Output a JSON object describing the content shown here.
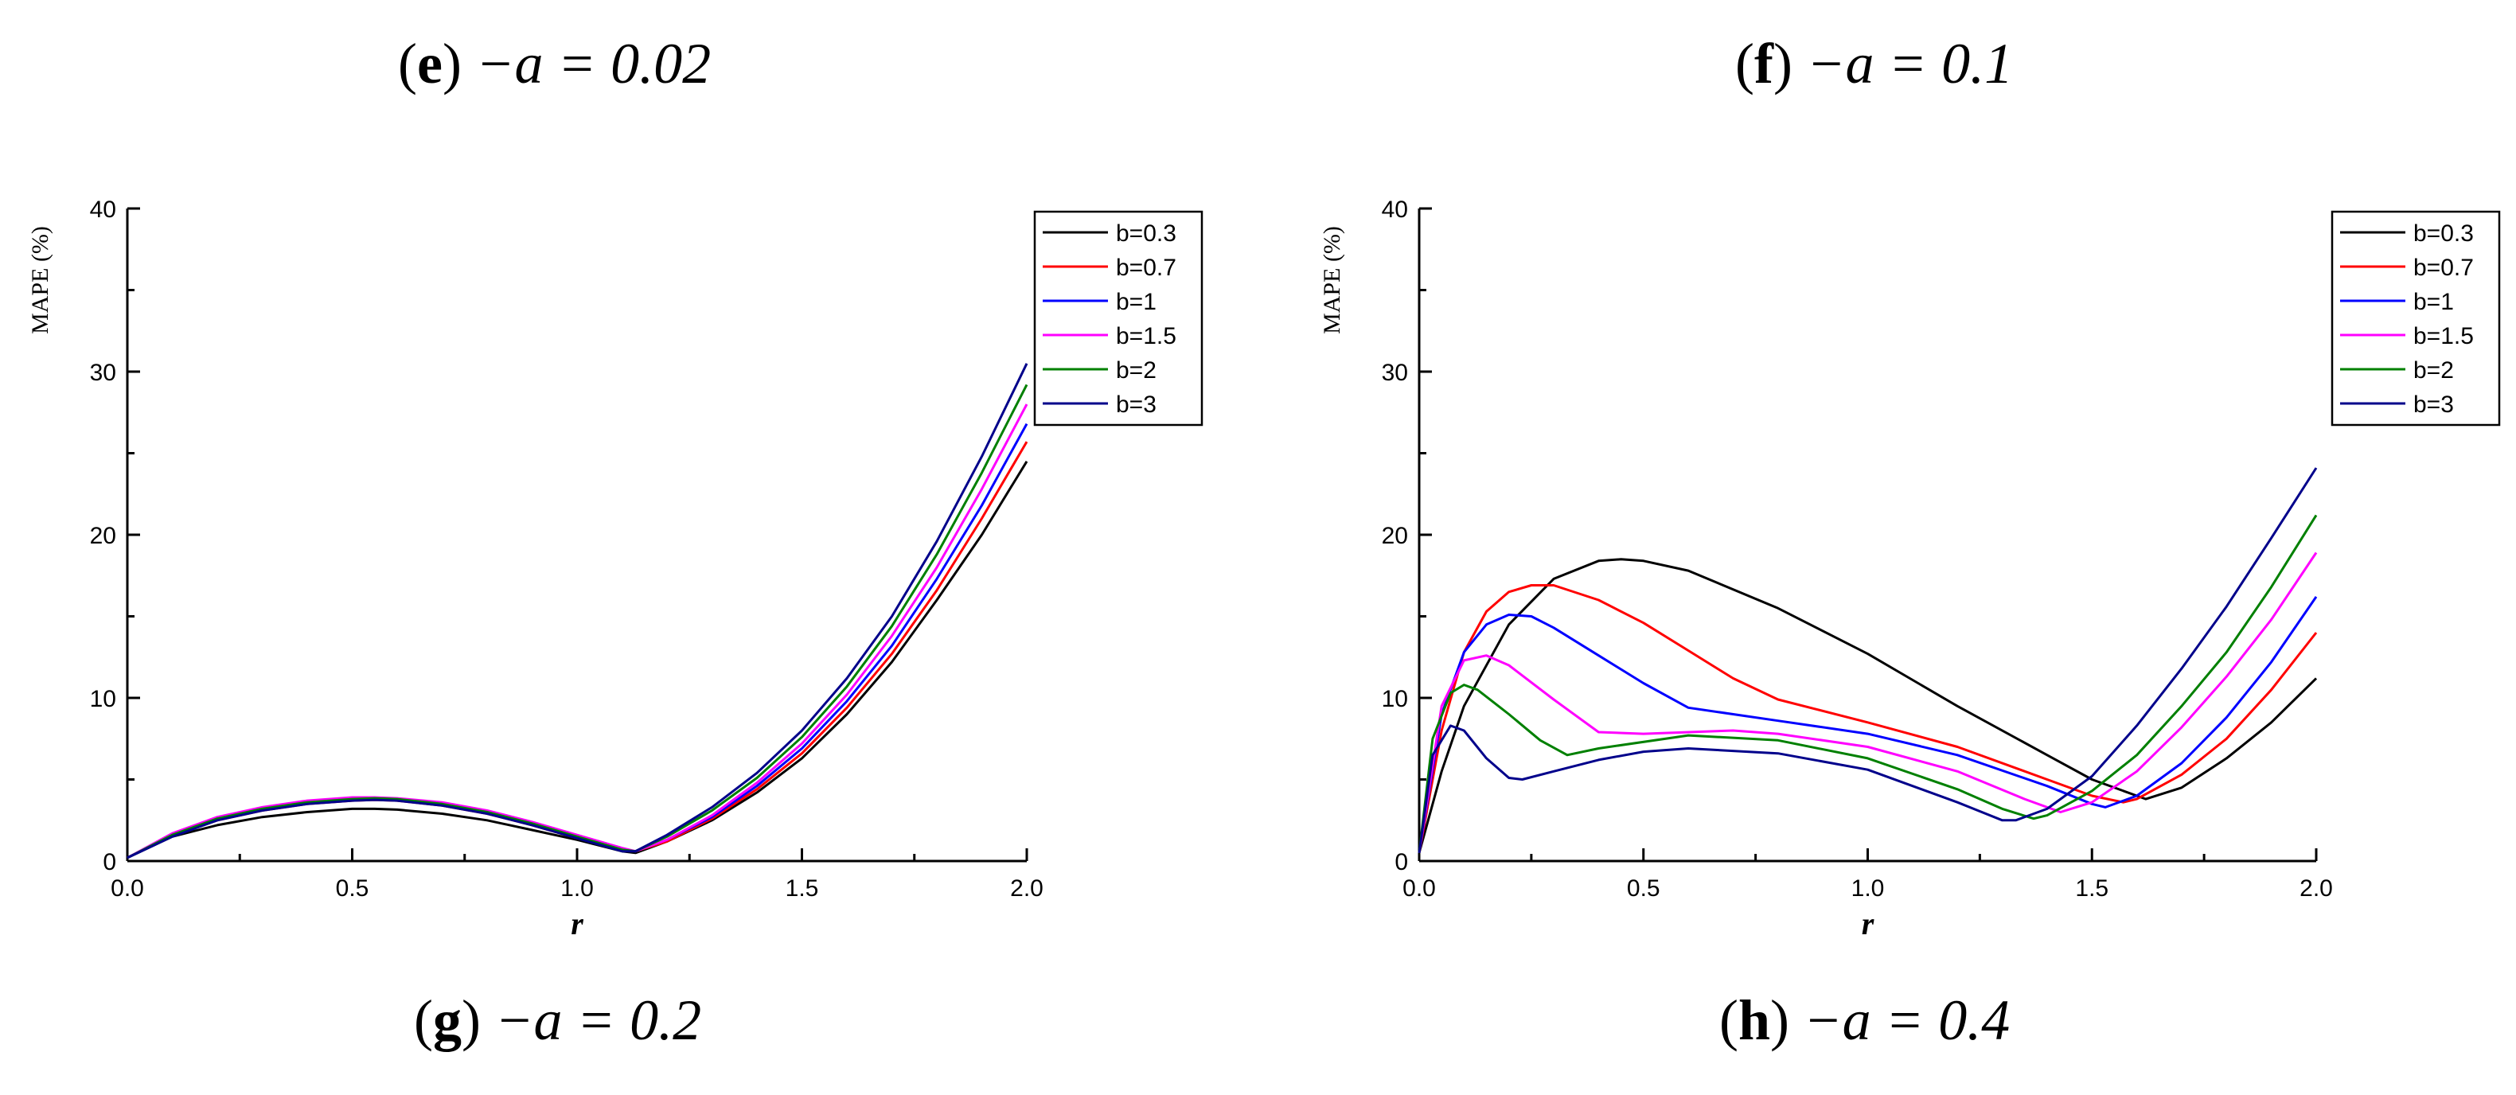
{
  "captions": {
    "e": {
      "letter": "e",
      "text": "−a = 0.02"
    },
    "f": {
      "letter": "f",
      "text": "−a = 0.1"
    },
    "g": {
      "letter": "g",
      "text": "−a = 0.2"
    },
    "h": {
      "letter": "h",
      "text": "−a = 0.4"
    }
  },
  "chart_data": [
    {
      "type": "line",
      "panel": "g",
      "xlabel": "r",
      "ylabel": "MAPE (%)",
      "xlim": [
        0,
        2.0
      ],
      "ylim": [
        0,
        40
      ],
      "xticks": [
        "0.0",
        "0.5",
        "1.0",
        "1.5",
        "2.0"
      ],
      "yticks": [
        "0",
        "10",
        "20",
        "30",
        "40"
      ],
      "legend_position": "top-right",
      "series": [
        {
          "name": "b=0.3",
          "color": "#000000",
          "x": [
            0,
            0.1,
            0.2,
            0.3,
            0.4,
            0.5,
            0.55,
            0.6,
            0.7,
            0.8,
            0.9,
            1.0,
            1.1,
            1.13,
            1.2,
            1.3,
            1.4,
            1.5,
            1.6,
            1.7,
            1.8,
            1.9,
            2.0
          ],
          "y": [
            0.2,
            1.5,
            2.2,
            2.7,
            3.0,
            3.2,
            3.2,
            3.15,
            2.9,
            2.5,
            1.9,
            1.3,
            0.6,
            0.5,
            1.2,
            2.5,
            4.2,
            6.3,
            9.0,
            12.2,
            16.0,
            20.0,
            24.5
          ]
        },
        {
          "name": "b=0.7",
          "color": "#ff0000",
          "x": [
            0,
            0.1,
            0.2,
            0.3,
            0.4,
            0.5,
            0.55,
            0.6,
            0.7,
            0.8,
            0.9,
            1.0,
            1.1,
            1.13,
            1.2,
            1.3,
            1.4,
            1.5,
            1.6,
            1.7,
            1.8,
            1.9,
            2.0
          ],
          "y": [
            0.2,
            1.6,
            2.5,
            3.1,
            3.5,
            3.7,
            3.75,
            3.7,
            3.4,
            2.9,
            2.2,
            1.4,
            0.7,
            0.6,
            1.2,
            2.6,
            4.4,
            6.6,
            9.4,
            12.7,
            16.6,
            21.0,
            25.7
          ]
        },
        {
          "name": "b=1",
          "color": "#0000ff",
          "x": [
            0,
            0.1,
            0.2,
            0.3,
            0.4,
            0.5,
            0.55,
            0.6,
            0.7,
            0.8,
            0.9,
            1.0,
            1.1,
            1.13,
            1.2,
            1.3,
            1.4,
            1.5,
            1.6,
            1.7,
            1.8,
            1.9,
            2.0
          ],
          "y": [
            0.2,
            1.6,
            2.6,
            3.2,
            3.6,
            3.8,
            3.85,
            3.8,
            3.5,
            3.0,
            2.3,
            1.5,
            0.7,
            0.6,
            1.3,
            2.7,
            4.6,
            6.9,
            9.8,
            13.2,
            17.3,
            21.8,
            26.8
          ]
        },
        {
          "name": "b=1.5",
          "color": "#ff00ff",
          "x": [
            0,
            0.1,
            0.2,
            0.3,
            0.4,
            0.5,
            0.55,
            0.6,
            0.7,
            0.8,
            0.9,
            1.0,
            1.1,
            1.13,
            1.2,
            1.3,
            1.4,
            1.5,
            1.6,
            1.7,
            1.8,
            1.9,
            2.0
          ],
          "y": [
            0.2,
            1.7,
            2.7,
            3.3,
            3.7,
            3.9,
            3.9,
            3.85,
            3.6,
            3.1,
            2.4,
            1.6,
            0.8,
            0.6,
            1.3,
            2.8,
            4.8,
            7.2,
            10.2,
            13.8,
            18.0,
            22.8,
            28.0
          ]
        },
        {
          "name": "b=2",
          "color": "#008000",
          "x": [
            0,
            0.1,
            0.2,
            0.3,
            0.4,
            0.5,
            0.55,
            0.6,
            0.7,
            0.8,
            0.9,
            1.0,
            1.1,
            1.13,
            1.2,
            1.3,
            1.4,
            1.5,
            1.6,
            1.7,
            1.8,
            1.9,
            2.0
          ],
          "y": [
            0.2,
            1.6,
            2.6,
            3.2,
            3.6,
            3.8,
            3.85,
            3.8,
            3.5,
            3.0,
            2.3,
            1.5,
            0.7,
            0.6,
            1.5,
            3.1,
            5.1,
            7.6,
            10.7,
            14.4,
            18.8,
            23.8,
            29.2
          ]
        },
        {
          "name": "b=3",
          "color": "#00008b",
          "x": [
            0,
            0.1,
            0.2,
            0.3,
            0.4,
            0.5,
            0.55,
            0.6,
            0.7,
            0.8,
            0.9,
            1.0,
            1.1,
            1.13,
            1.2,
            1.3,
            1.4,
            1.5,
            1.6,
            1.7,
            1.8,
            1.9,
            2.0
          ],
          "y": [
            0.2,
            1.5,
            2.5,
            3.1,
            3.5,
            3.7,
            3.75,
            3.7,
            3.4,
            2.9,
            2.2,
            1.4,
            0.6,
            0.6,
            1.6,
            3.3,
            5.4,
            8.0,
            11.2,
            15.0,
            19.6,
            24.8,
            30.5
          ]
        }
      ]
    },
    {
      "type": "line",
      "panel": "h",
      "xlabel": "r",
      "ylabel": "MAPE (%)",
      "xlim": [
        0,
        2.0
      ],
      "ylim": [
        0,
        40
      ],
      "xticks": [
        "0.0",
        "0.5",
        "1.0",
        "1.5",
        "2.0"
      ],
      "yticks": [
        "0",
        "10",
        "20",
        "30",
        "40"
      ],
      "legend_position": "top-right",
      "series": [
        {
          "name": "b=0.3",
          "color": "#000000",
          "x": [
            0,
            0.05,
            0.1,
            0.2,
            0.3,
            0.4,
            0.45,
            0.5,
            0.6,
            0.8,
            1.0,
            1.2,
            1.4,
            1.5,
            1.6,
            1.62,
            1.7,
            1.8,
            1.9,
            2.0
          ],
          "y": [
            0.5,
            5.5,
            9.5,
            14.5,
            17.3,
            18.4,
            18.5,
            18.4,
            17.8,
            15.5,
            12.7,
            9.5,
            6.5,
            5.0,
            4.0,
            3.8,
            4.5,
            6.3,
            8.5,
            11.2
          ]
        },
        {
          "name": "b=0.7",
          "color": "#ff0000",
          "x": [
            0,
            0.05,
            0.1,
            0.15,
            0.2,
            0.25,
            0.3,
            0.4,
            0.5,
            0.6,
            0.7,
            0.8,
            1.0,
            1.2,
            1.4,
            1.5,
            1.57,
            1.6,
            1.7,
            1.8,
            1.9,
            2.0
          ],
          "y": [
            0.5,
            8.0,
            12.8,
            15.3,
            16.5,
            16.9,
            16.9,
            16.0,
            14.6,
            12.9,
            11.2,
            9.9,
            8.5,
            7.0,
            5.0,
            4.0,
            3.6,
            3.8,
            5.3,
            7.5,
            10.5,
            14.0
          ]
        },
        {
          "name": "b=1",
          "color": "#0000ff",
          "x": [
            0,
            0.05,
            0.1,
            0.15,
            0.2,
            0.25,
            0.3,
            0.4,
            0.5,
            0.6,
            0.8,
            1.0,
            1.2,
            1.4,
            1.5,
            1.53,
            1.6,
            1.7,
            1.8,
            1.9,
            2.0
          ],
          "y": [
            0.5,
            9.0,
            12.8,
            14.5,
            15.1,
            15.0,
            14.3,
            12.6,
            10.9,
            9.4,
            8.6,
            7.8,
            6.5,
            4.6,
            3.5,
            3.3,
            4.0,
            6.0,
            8.8,
            12.2,
            16.2
          ]
        },
        {
          "name": "b=1.5",
          "color": "#ff00ff",
          "x": [
            0,
            0.05,
            0.1,
            0.15,
            0.2,
            0.3,
            0.4,
            0.5,
            0.7,
            0.8,
            1.0,
            1.2,
            1.35,
            1.43,
            1.5,
            1.6,
            1.7,
            1.8,
            1.9,
            2.0
          ],
          "y": [
            0.5,
            9.5,
            12.3,
            12.6,
            12.0,
            9.9,
            7.9,
            7.8,
            8.0,
            7.8,
            7.0,
            5.5,
            3.8,
            3.0,
            3.6,
            5.5,
            8.2,
            11.3,
            14.8,
            18.9
          ]
        },
        {
          "name": "b=2",
          "color": "#008000",
          "x": [
            0,
            0.03,
            0.07,
            0.1,
            0.13,
            0.2,
            0.27,
            0.33,
            0.4,
            0.6,
            0.8,
            1.0,
            1.2,
            1.3,
            1.37,
            1.4,
            1.5,
            1.6,
            1.7,
            1.8,
            1.9,
            2.0
          ],
          "y": [
            0.5,
            7.5,
            10.3,
            10.8,
            10.5,
            9.0,
            7.4,
            6.5,
            6.9,
            7.7,
            7.4,
            6.3,
            4.4,
            3.2,
            2.6,
            2.8,
            4.3,
            6.5,
            9.5,
            12.8,
            16.8,
            21.2
          ]
        },
        {
          "name": "b=3",
          "color": "#00008b",
          "x": [
            0,
            0.03,
            0.07,
            0.1,
            0.15,
            0.2,
            0.23,
            0.3,
            0.4,
            0.5,
            0.6,
            0.8,
            1.0,
            1.2,
            1.3,
            1.33,
            1.4,
            1.5,
            1.6,
            1.7,
            1.8,
            1.9,
            2.0
          ],
          "y": [
            0.5,
            6.5,
            8.3,
            8.0,
            6.3,
            5.1,
            5.0,
            5.5,
            6.2,
            6.7,
            6.9,
            6.6,
            5.6,
            3.6,
            2.5,
            2.5,
            3.2,
            5.2,
            8.3,
            11.8,
            15.6,
            19.8,
            24.1
          ]
        }
      ]
    }
  ]
}
